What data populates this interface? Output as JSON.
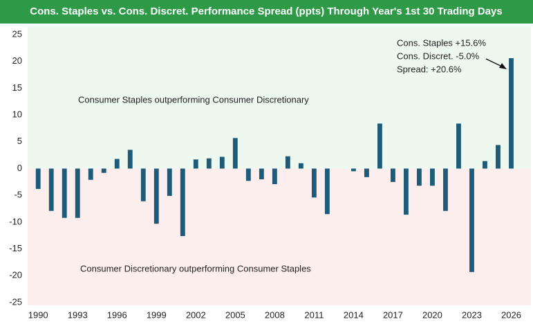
{
  "chart_data": {
    "type": "bar",
    "title": "Cons. Staples vs. Cons. Discret. Performance Spread (ppts) Through Year's 1st 30 Trading Days",
    "x": [
      1990,
      1991,
      1992,
      1993,
      1994,
      1995,
      1996,
      1997,
      1998,
      1999,
      2000,
      2001,
      2002,
      2003,
      2004,
      2005,
      2006,
      2007,
      2008,
      2009,
      2010,
      2011,
      2012,
      2013,
      2014,
      2015,
      2016,
      2017,
      2018,
      2019,
      2020,
      2021,
      2022,
      2023,
      2024,
      2025,
      2026
    ],
    "values": [
      -3.8,
      -7.9,
      -9.2,
      -9.2,
      -2.1,
      -0.8,
      1.8,
      3.5,
      -6.1,
      -10.3,
      -5.1,
      -12.6,
      1.7,
      1.9,
      2.2,
      5.7,
      -2.3,
      -2.0,
      -2.9,
      2.3,
      1.0,
      -5.4,
      -8.5,
      0,
      -0.5,
      -1.6,
      8.4,
      -2.5,
      -8.6,
      -3.2,
      -3.2,
      -7.9,
      8.4,
      -19.3,
      1.4,
      4.4,
      20.6
    ],
    "color": "#1e5b78",
    "xlim": [
      1989.2,
      2027.5
    ],
    "xticks": [
      1990,
      1993,
      1996,
      1999,
      2002,
      2005,
      2008,
      2011,
      2014,
      2017,
      2020,
      2023,
      2026
    ],
    "ylim": [
      -25,
      25
    ],
    "yticks": [
      -25,
      -20,
      -15,
      -10,
      -5,
      0,
      5,
      10,
      15,
      20,
      25
    ],
    "positive_region_color": "#edf8ef",
    "negative_region_color": "#fdeeee",
    "positive_region_label": "Consumer Staples outperforming Consumer Discretionary",
    "negative_region_label": "Consumer Discretionary outperforming Consumer Staples",
    "annotation": [
      "Cons. Staples +15.6%",
      "Cons. Discret. -5.0%",
      "Spread: +20.6%"
    ]
  }
}
